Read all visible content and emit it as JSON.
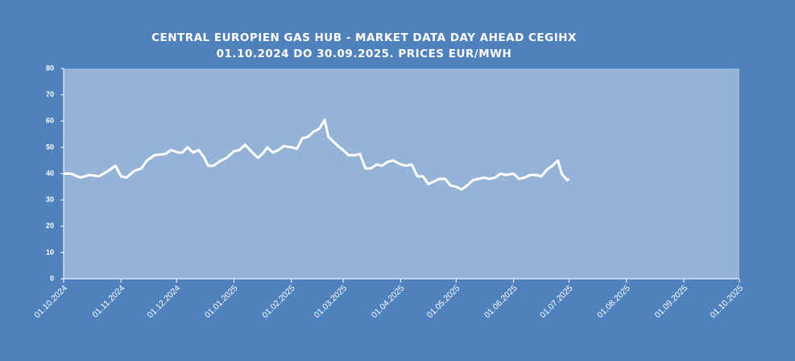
{
  "chart_data": {
    "type": "line",
    "title": [
      "CENTRAL EUROPIEN GAS HUB - MARKET DATA DAY AHEAD CEGIHX",
      "01.10.2024 DO 30.09.2025. PRICES EUR/MWH"
    ],
    "x": [
      "2024-10-01",
      "2024-10-05",
      "2024-10-10",
      "2024-10-15",
      "2024-10-20",
      "2024-10-25",
      "2024-10-29",
      "2024-11-01",
      "2024-11-04",
      "2024-11-08",
      "2024-11-12",
      "2024-11-15",
      "2024-11-19",
      "2024-11-25",
      "2024-11-28",
      "2024-12-02",
      "2024-12-04",
      "2024-12-07",
      "2024-12-10",
      "2024-12-13",
      "2024-12-16",
      "2024-12-18",
      "2024-12-21",
      "2024-12-25",
      "2024-12-28",
      "2025-01-01",
      "2025-01-04",
      "2025-01-07",
      "2025-01-11",
      "2025-01-14",
      "2025-01-17",
      "2025-01-19",
      "2025-01-22",
      "2025-01-25",
      "2025-01-28",
      "2025-02-01",
      "2025-02-04",
      "2025-02-07",
      "2025-02-10",
      "2025-02-13",
      "2025-02-16",
      "2025-02-19",
      "2025-02-21",
      "2025-02-24",
      "2025-02-27",
      "2025-03-01",
      "2025-03-04",
      "2025-03-07",
      "2025-03-10",
      "2025-03-13",
      "2025-03-16",
      "2025-03-19",
      "2025-03-22",
      "2025-03-25",
      "2025-03-28",
      "2025-04-01",
      "2025-04-04",
      "2025-04-07",
      "2025-04-10",
      "2025-04-13",
      "2025-04-16",
      "2025-04-19",
      "2025-04-22",
      "2025-04-25",
      "2025-04-28",
      "2025-05-01",
      "2025-05-04",
      "2025-05-07",
      "2025-05-10",
      "2025-05-13",
      "2025-05-16",
      "2025-05-19",
      "2025-05-22",
      "2025-05-25",
      "2025-05-28",
      "2025-06-01",
      "2025-06-04",
      "2025-06-07",
      "2025-06-10",
      "2025-06-13",
      "2025-06-16",
      "2025-06-19",
      "2025-06-22",
      "2025-06-25",
      "2025-06-27",
      "2025-06-30",
      "2025-07-01"
    ],
    "values": [
      40,
      40,
      38.5,
      39.5,
      39,
      41,
      43,
      39,
      38.5,
      41,
      42,
      45,
      47,
      47.5,
      49,
      48,
      48,
      50,
      48,
      49,
      46,
      43,
      43,
      45,
      46,
      48.5,
      49,
      51,
      48,
      46,
      48,
      50,
      48,
      49,
      50.5,
      50,
      49.5,
      53.5,
      54,
      56,
      57,
      60.5,
      54,
      52,
      50,
      49,
      47,
      47,
      47.5,
      42,
      42,
      43.5,
      43,
      44.5,
      45,
      43.5,
      43,
      43.5,
      39,
      39,
      36,
      37,
      38,
      38,
      35.5,
      35,
      34,
      35.5,
      37.5,
      38,
      38.5,
      38,
      38.5,
      40,
      39.5,
      40,
      38,
      38.5,
      39.5,
      39.5,
      39,
      41.5,
      43,
      45,
      40,
      37.5,
      38
    ],
    "color": "#ffffff",
    "ylim": [
      0,
      80
    ],
    "yticks": [
      0,
      10,
      20,
      30,
      40,
      50,
      60,
      70,
      80
    ],
    "xlim": [
      "2024-10-01",
      "2025-10-01"
    ],
    "xticks": [
      {
        "value": "2024-10-01",
        "label": "01.10.2024"
      },
      {
        "value": "2024-11-01",
        "label": "01.11.2024"
      },
      {
        "value": "2024-12-01",
        "label": "01.12.2024"
      },
      {
        "value": "2025-01-01",
        "label": "01.01.2025"
      },
      {
        "value": "2025-02-01",
        "label": "01.02.2025"
      },
      {
        "value": "2025-03-01",
        "label": "01.03.2025"
      },
      {
        "value": "2025-04-01",
        "label": "01.04.2025"
      },
      {
        "value": "2025-05-01",
        "label": "01.05.2025"
      },
      {
        "value": "2025-06-01",
        "label": "01.06.2025"
      },
      {
        "value": "2025-07-01",
        "label": "01.07.2025"
      },
      {
        "value": "2025-08-01",
        "label": "01.08.2025"
      },
      {
        "value": "2025-09-01",
        "label": "01.09.2025"
      },
      {
        "value": "2025-10-01",
        "label": "01.10.2025"
      }
    ]
  }
}
